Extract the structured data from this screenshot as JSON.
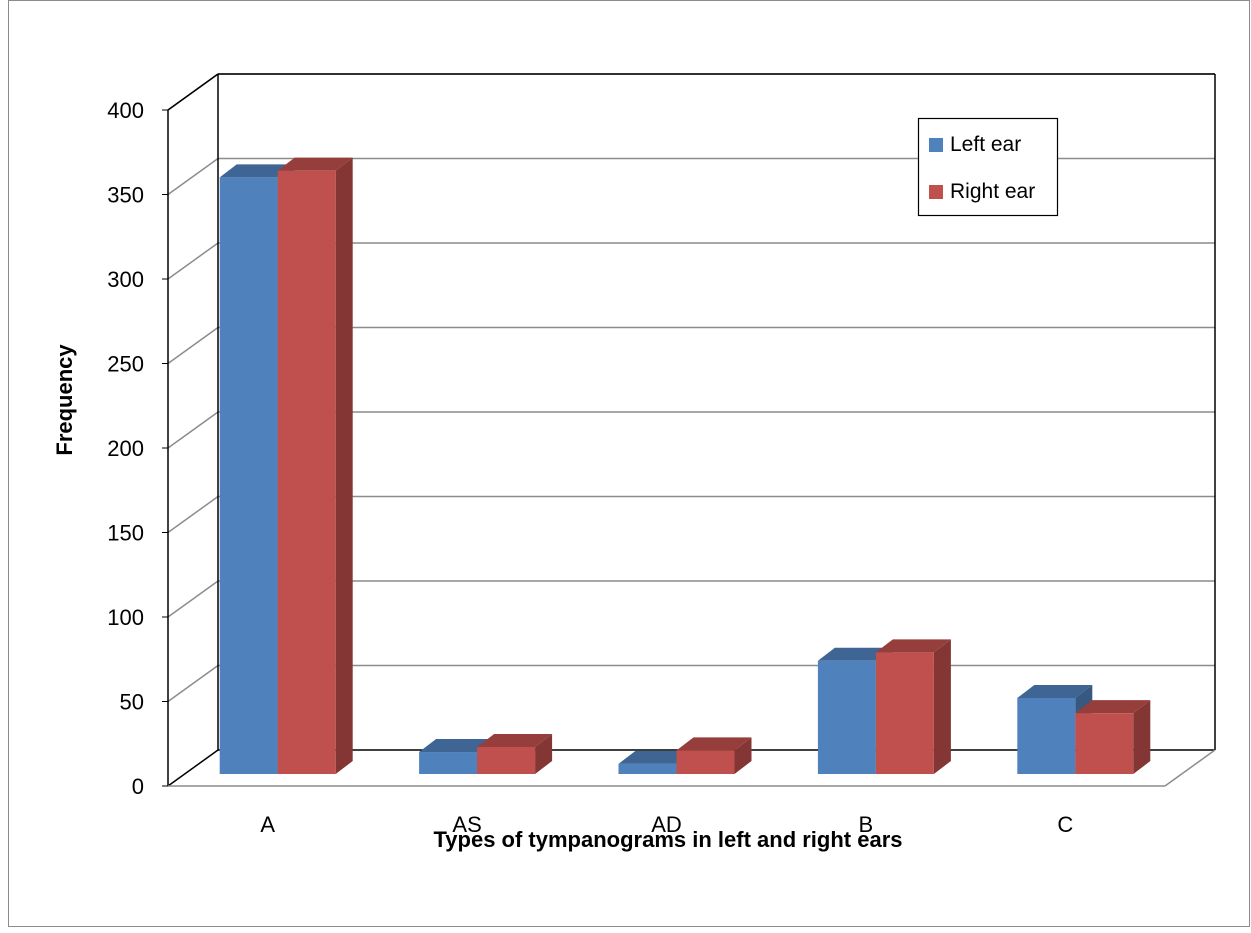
{
  "chart_data": {
    "type": "bar",
    "title": "",
    "xlabel": "Types of tympanograms in left and right ears",
    "ylabel": "Frequency",
    "categories": [
      "A",
      "AS",
      "AD",
      "B",
      "C"
    ],
    "ylim": [
      0,
      400
    ],
    "yticks": [
      0,
      50,
      100,
      150,
      200,
      250,
      300,
      350,
      400
    ],
    "grid": true,
    "legend_position": "top-right",
    "series": [
      {
        "name": "Left ear",
        "values": [
          353,
          13,
          6,
          67,
          45
        ],
        "color": "#4F81BD"
      },
      {
        "name": "Right ear",
        "values": [
          357,
          16,
          14,
          72,
          36
        ],
        "color": "#C0504D"
      }
    ]
  }
}
